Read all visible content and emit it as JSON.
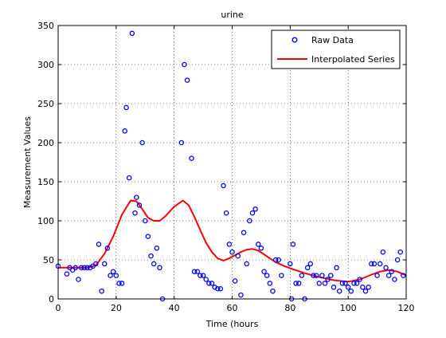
{
  "chart_data": {
    "type": "scatter",
    "title": "urine",
    "xlabel": "Time (hours",
    "ylabel": "Measurement Values",
    "xlim": [
      0,
      120
    ],
    "ylim": [
      0,
      350
    ],
    "xticks": [
      0,
      20,
      40,
      60,
      80,
      100,
      120
    ],
    "yticks": [
      0,
      50,
      100,
      150,
      200,
      250,
      300,
      350
    ],
    "grid": true,
    "legend_position": "top-right",
    "series": [
      {
        "name": "Raw Data",
        "kind": "markers",
        "marker": "circle",
        "color": "#0000ff",
        "points": [
          [
            0,
            42
          ],
          [
            3,
            32
          ],
          [
            4,
            40
          ],
          [
            5,
            37
          ],
          [
            6,
            40
          ],
          [
            7,
            25
          ],
          [
            8,
            40
          ],
          [
            9,
            40
          ],
          [
            10,
            40
          ],
          [
            11,
            40
          ],
          [
            12,
            42
          ],
          [
            13,
            45
          ],
          [
            14,
            70
          ],
          [
            15,
            10
          ],
          [
            16,
            45
          ],
          [
            17,
            65
          ],
          [
            18,
            30
          ],
          [
            19,
            35
          ],
          [
            20,
            30
          ],
          [
            21,
            20
          ],
          [
            22,
            20
          ],
          [
            23,
            215
          ],
          [
            23.5,
            245
          ],
          [
            24.5,
            155
          ],
          [
            25.5,
            340
          ],
          [
            26.5,
            110
          ],
          [
            27,
            130
          ],
          [
            28,
            120
          ],
          [
            29,
            200
          ],
          [
            30,
            100
          ],
          [
            31,
            80
          ],
          [
            32,
            55
          ],
          [
            33,
            45
          ],
          [
            34,
            65
          ],
          [
            35,
            40
          ],
          [
            36,
            0
          ],
          [
            42.5,
            200
          ],
          [
            43.5,
            300
          ],
          [
            44.5,
            280
          ],
          [
            46,
            180
          ],
          [
            47,
            35
          ],
          [
            48,
            35
          ],
          [
            49,
            30
          ],
          [
            50,
            30
          ],
          [
            51,
            25
          ],
          [
            52,
            20
          ],
          [
            53,
            20
          ],
          [
            54,
            15
          ],
          [
            55,
            13
          ],
          [
            56,
            13
          ],
          [
            57,
            145
          ],
          [
            58,
            110
          ],
          [
            59,
            70
          ],
          [
            60,
            60
          ],
          [
            61,
            23
          ],
          [
            62,
            55
          ],
          [
            63,
            5
          ],
          [
            64,
            85
          ],
          [
            65,
            45
          ],
          [
            66,
            100
          ],
          [
            67,
            110
          ],
          [
            68,
            115
          ],
          [
            69,
            70
          ],
          [
            70,
            65
          ],
          [
            71,
            35
          ],
          [
            72,
            30
          ],
          [
            73,
            20
          ],
          [
            74,
            10
          ],
          [
            75,
            50
          ],
          [
            76,
            50
          ],
          [
            77,
            30
          ],
          [
            80,
            45
          ],
          [
            80.5,
            0
          ],
          [
            81,
            70
          ],
          [
            82,
            20
          ],
          [
            83,
            20
          ],
          [
            84,
            30
          ],
          [
            85,
            0
          ],
          [
            86,
            40
          ],
          [
            87,
            45
          ],
          [
            88,
            30
          ],
          [
            89,
            30
          ],
          [
            90,
            20
          ],
          [
            91,
            30
          ],
          [
            92,
            20
          ],
          [
            93,
            25
          ],
          [
            94,
            30
          ],
          [
            95,
            15
          ],
          [
            96,
            40
          ],
          [
            97,
            10
          ],
          [
            98,
            20
          ],
          [
            99,
            20
          ],
          [
            100,
            15
          ],
          [
            101,
            10
          ],
          [
            102,
            20
          ],
          [
            103,
            20
          ],
          [
            104,
            25
          ],
          [
            105,
            15
          ],
          [
            106,
            10
          ],
          [
            107,
            15
          ],
          [
            108,
            45
          ],
          [
            109,
            45
          ],
          [
            110,
            30
          ],
          [
            111,
            45
          ],
          [
            112,
            60
          ],
          [
            113,
            40
          ],
          [
            114,
            30
          ],
          [
            115,
            35
          ],
          [
            116,
            25
          ],
          [
            117,
            50
          ],
          [
            118,
            60
          ],
          [
            119,
            30
          ]
        ]
      },
      {
        "name": "Interpolated Series",
        "kind": "line",
        "color": "#ff0000",
        "points": [
          [
            0,
            40
          ],
          [
            5,
            40
          ],
          [
            10,
            40
          ],
          [
            13,
            43
          ],
          [
            16,
            58
          ],
          [
            19,
            80
          ],
          [
            22,
            108
          ],
          [
            25,
            126
          ],
          [
            27,
            125
          ],
          [
            29,
            115
          ],
          [
            31,
            104
          ],
          [
            33,
            100
          ],
          [
            35,
            100
          ],
          [
            37,
            106
          ],
          [
            40,
            118
          ],
          [
            43,
            126
          ],
          [
            45,
            120
          ],
          [
            47,
            105
          ],
          [
            49,
            88
          ],
          [
            51,
            72
          ],
          [
            53,
            60
          ],
          [
            55,
            52
          ],
          [
            57,
            49
          ],
          [
            59,
            52
          ],
          [
            61,
            56
          ],
          [
            63,
            60
          ],
          [
            65,
            63
          ],
          [
            67,
            64
          ],
          [
            69,
            62
          ],
          [
            71,
            57
          ],
          [
            73,
            52
          ],
          [
            75,
            47
          ],
          [
            78,
            42
          ],
          [
            81,
            38
          ],
          [
            85,
            33
          ],
          [
            90,
            28
          ],
          [
            95,
            24
          ],
          [
            100,
            22
          ],
          [
            104,
            25
          ],
          [
            108,
            31
          ],
          [
            111,
            35
          ],
          [
            114,
            37
          ],
          [
            117,
            35
          ],
          [
            120,
            30
          ]
        ]
      }
    ]
  }
}
